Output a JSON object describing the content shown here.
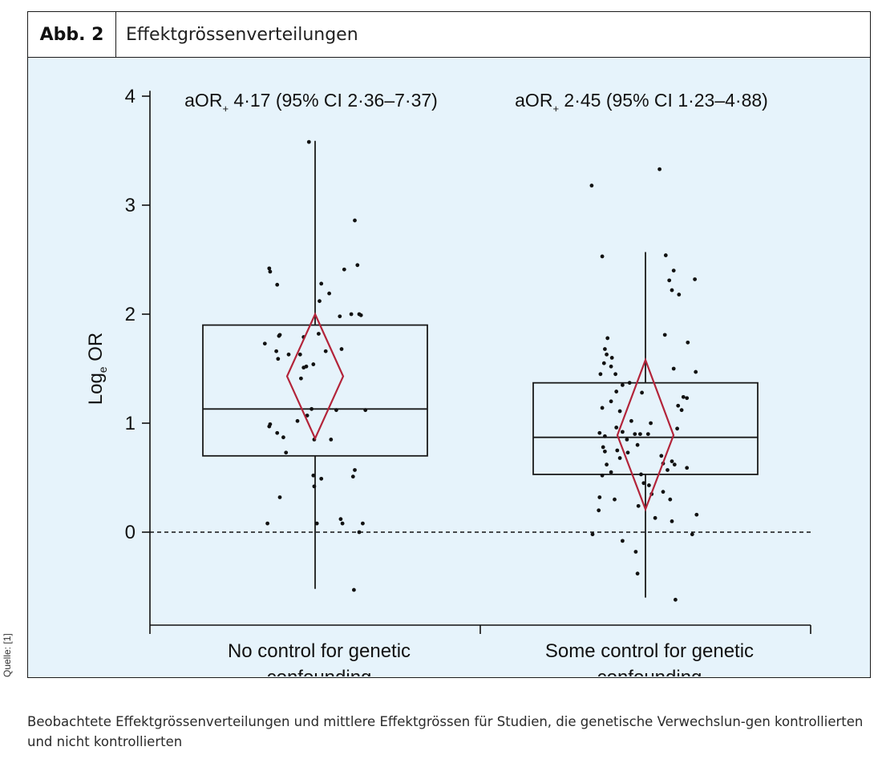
{
  "figure": {
    "label": "Abb. 2",
    "title": "Effektgrössenverteilungen",
    "source": "Quelle: [1]",
    "caption": "Beobachtete Effektgrössenverteilungen und mittlere Effektgrössen für Studien, die genetische Verwechslun-gen kontrollierten und nicht kontrollierten"
  },
  "chart_data": {
    "type": "box",
    "ylabel": "Loge OR",
    "ylim": [
      -0.85,
      4.05
    ],
    "yticks": [
      0,
      1,
      2,
      3,
      4
    ],
    "reference_line": 0,
    "categories": [
      "No control for genetic confounding",
      "Some control for genetic confounding"
    ],
    "category_lines": [
      [
        "No control for genetic",
        "confounding"
      ],
      [
        "Some control for genetic",
        "confounding"
      ]
    ],
    "annotations": [
      {
        "main": "aOR",
        "sub": "+",
        "rest": " 4·17 (95% CI 2·36–7·37)"
      },
      {
        "main": "aOR",
        "sub": "+",
        "rest": " 2·45 (95% CI 1·23–4·88)"
      }
    ],
    "colors": {
      "box": "#1a1a1a",
      "diamond": "#b3243a",
      "points": "#111111",
      "background": "#e6f3fb"
    },
    "boxes": [
      {
        "q1": 0.7,
        "median": 1.13,
        "q3": 1.9,
        "whisker_low": -0.52,
        "whisker_high": 3.59
      },
      {
        "q1": 0.53,
        "median": 0.87,
        "q3": 1.37,
        "whisker_low": -0.6,
        "whisker_high": 2.57
      }
    ],
    "pooled_log_or": [
      {
        "estimate": 1.43,
        "ci_low": 0.86,
        "ci_high": 2.0
      },
      {
        "estimate": 0.89,
        "ci_low": 0.21,
        "ci_high": 1.58
      }
    ],
    "points": [
      [
        [
          -0.07,
          3.58
        ],
        [
          0.45,
          2.86
        ],
        [
          -0.52,
          2.42
        ],
        [
          -0.51,
          2.39
        ],
        [
          0.33,
          2.41
        ],
        [
          0.48,
          2.45
        ],
        [
          -0.43,
          2.27
        ],
        [
          0.07,
          2.28
        ],
        [
          0.16,
          2.19
        ],
        [
          0.05,
          2.12
        ],
        [
          -0.4,
          1.81
        ],
        [
          -0.41,
          1.8
        ],
        [
          0.41,
          2.0
        ],
        [
          0.5,
          2.0
        ],
        [
          0.52,
          1.99
        ],
        [
          0.28,
          1.98
        ],
        [
          -0.13,
          1.79
        ],
        [
          0.04,
          1.82
        ],
        [
          -0.57,
          1.73
        ],
        [
          -0.44,
          1.66
        ],
        [
          -0.3,
          1.63
        ],
        [
          -0.17,
          1.63
        ],
        [
          -0.42,
          1.59
        ],
        [
          0.12,
          1.66
        ],
        [
          -0.1,
          1.52
        ],
        [
          -0.02,
          1.54
        ],
        [
          -0.16,
          1.41
        ],
        [
          -0.13,
          1.51
        ],
        [
          0.3,
          1.68
        ],
        [
          0.57,
          1.12
        ],
        [
          -0.04,
          1.13
        ],
        [
          0.24,
          1.12
        ],
        [
          -0.09,
          1.07
        ],
        [
          -0.2,
          1.02
        ],
        [
          -0.51,
          0.99
        ],
        [
          -0.52,
          0.97
        ],
        [
          -0.43,
          0.91
        ],
        [
          -0.36,
          0.87
        ],
        [
          -0.01,
          0.85
        ],
        [
          0.18,
          0.85
        ],
        [
          -0.33,
          0.73
        ],
        [
          -0.02,
          0.52
        ],
        [
          0.45,
          0.57
        ],
        [
          0.43,
          0.51
        ],
        [
          0.07,
          0.49
        ],
        [
          -0.01,
          0.42
        ],
        [
          0.29,
          0.12
        ],
        [
          0.31,
          0.08
        ],
        [
          0.54,
          0.08
        ],
        [
          -0.4,
          0.32
        ],
        [
          0.02,
          0.08
        ],
        [
          -0.54,
          0.08
        ],
        [
          0.5,
          0.0
        ],
        [
          0.44,
          -0.53
        ]
      ],
      [
        [
          -0.61,
          3.18
        ],
        [
          0.16,
          3.33
        ],
        [
          -0.49,
          2.53
        ],
        [
          0.23,
          2.54
        ],
        [
          0.27,
          2.31
        ],
        [
          0.32,
          2.4
        ],
        [
          0.3,
          2.22
        ],
        [
          0.38,
          2.18
        ],
        [
          0.56,
          2.32
        ],
        [
          0.22,
          1.81
        ],
        [
          -0.43,
          1.78
        ],
        [
          0.48,
          1.74
        ],
        [
          -0.46,
          1.68
        ],
        [
          -0.38,
          1.6
        ],
        [
          -0.44,
          1.63
        ],
        [
          -0.47,
          1.55
        ],
        [
          -0.39,
          1.52
        ],
        [
          0.32,
          1.5
        ],
        [
          0.57,
          1.47
        ],
        [
          -0.51,
          1.45
        ],
        [
          -0.34,
          1.45
        ],
        [
          -0.18,
          1.37
        ],
        [
          -0.26,
          1.35
        ],
        [
          -0.33,
          1.29
        ],
        [
          -0.04,
          1.28
        ],
        [
          0.43,
          1.24
        ],
        [
          0.47,
          1.23
        ],
        [
          -0.49,
          1.14
        ],
        [
          -0.39,
          1.2
        ],
        [
          -0.29,
          1.11
        ],
        [
          0.37,
          1.16
        ],
        [
          0.41,
          1.12
        ],
        [
          -0.16,
          1.02
        ],
        [
          0.06,
          1.0
        ],
        [
          -0.33,
          0.96
        ],
        [
          -0.52,
          0.91
        ],
        [
          -0.46,
          0.88
        ],
        [
          -0.26,
          0.92
        ],
        [
          -0.21,
          0.85
        ],
        [
          -0.12,
          0.9
        ],
        [
          -0.06,
          0.9
        ],
        [
          0.03,
          0.9
        ],
        [
          0.36,
          0.95
        ],
        [
          -0.48,
          0.78
        ],
        [
          -0.46,
          0.74
        ],
        [
          -0.32,
          0.75
        ],
        [
          -0.29,
          0.68
        ],
        [
          -0.2,
          0.73
        ],
        [
          -0.09,
          0.8
        ],
        [
          0.18,
          0.7
        ],
        [
          0.2,
          0.63
        ],
        [
          0.3,
          0.65
        ],
        [
          0.33,
          0.62
        ],
        [
          0.25,
          0.57
        ],
        [
          0.47,
          0.59
        ],
        [
          -0.44,
          0.62
        ],
        [
          -0.39,
          0.55
        ],
        [
          -0.49,
          0.52
        ],
        [
          -0.05,
          0.53
        ],
        [
          -0.02,
          0.45
        ],
        [
          0.04,
          0.43
        ],
        [
          0.07,
          0.35
        ],
        [
          0.28,
          0.3
        ],
        [
          0.2,
          0.37
        ],
        [
          -0.52,
          0.32
        ],
        [
          -0.53,
          0.2
        ],
        [
          -0.35,
          0.3
        ],
        [
          -0.08,
          0.24
        ],
        [
          0.11,
          0.13
        ],
        [
          0.3,
          0.1
        ],
        [
          0.58,
          0.16
        ],
        [
          -0.6,
          -0.02
        ],
        [
          -0.26,
          -0.08
        ],
        [
          -0.11,
          -0.18
        ],
        [
          -0.09,
          -0.38
        ],
        [
          0.53,
          -0.02
        ],
        [
          0.34,
          -0.62
        ]
      ]
    ]
  }
}
